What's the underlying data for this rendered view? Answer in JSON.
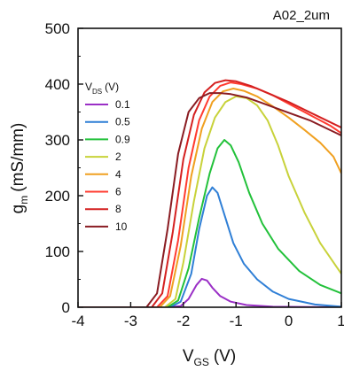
{
  "chart_data": {
    "type": "line",
    "tag": "A02_2um",
    "xlabel": {
      "main": "V",
      "sub": "GS",
      "unit": "(V)"
    },
    "ylabel": {
      "main": "g",
      "sub": "m",
      "unit": "(mS/mm)"
    },
    "xlim": [
      -4,
      1
    ],
    "ylim": [
      0,
      500
    ],
    "xticks": [
      -4,
      -3,
      -2,
      -1,
      0,
      1
    ],
    "yticks": [
      0,
      100,
      200,
      300,
      400,
      500
    ],
    "legend": {
      "title": "V",
      "title_sub": "DS",
      "title_unit": "(V)",
      "placement": "left-inside"
    },
    "grid": false,
    "series": [
      {
        "name": "0.1",
        "color": "#9a2fc6",
        "points": [
          [
            -4,
            0
          ],
          [
            -2.3,
            0
          ],
          [
            -2.05,
            2
          ],
          [
            -1.9,
            15
          ],
          [
            -1.75,
            40
          ],
          [
            -1.65,
            51
          ],
          [
            -1.55,
            48
          ],
          [
            -1.45,
            35
          ],
          [
            -1.3,
            20
          ],
          [
            -1.1,
            10
          ],
          [
            -0.8,
            4
          ],
          [
            -0.3,
            1
          ],
          [
            1,
            0
          ]
        ]
      },
      {
        "name": "0.5",
        "color": "#2f7fd6",
        "points": [
          [
            -4,
            0
          ],
          [
            -2.25,
            0
          ],
          [
            -2.05,
            10
          ],
          [
            -1.85,
            60
          ],
          [
            -1.7,
            140
          ],
          [
            -1.55,
            200
          ],
          [
            -1.45,
            215
          ],
          [
            -1.35,
            205
          ],
          [
            -1.2,
            160
          ],
          [
            -1.05,
            115
          ],
          [
            -0.85,
            78
          ],
          [
            -0.6,
            50
          ],
          [
            -0.3,
            28
          ],
          [
            0,
            15
          ],
          [
            0.5,
            5
          ],
          [
            1,
            1
          ]
        ]
      },
      {
        "name": "0.9",
        "color": "#22c13a",
        "points": [
          [
            -4,
            0
          ],
          [
            -2.3,
            0
          ],
          [
            -2.1,
            12
          ],
          [
            -1.9,
            70
          ],
          [
            -1.7,
            160
          ],
          [
            -1.5,
            240
          ],
          [
            -1.35,
            285
          ],
          [
            -1.22,
            300
          ],
          [
            -1.1,
            290
          ],
          [
            -0.95,
            260
          ],
          [
            -0.75,
            205
          ],
          [
            -0.5,
            150
          ],
          [
            -0.2,
            105
          ],
          [
            0.2,
            65
          ],
          [
            0.6,
            40
          ],
          [
            1,
            25
          ]
        ]
      },
      {
        "name": "2",
        "color": "#c8d23a",
        "points": [
          [
            -4,
            0
          ],
          [
            -2.35,
            0
          ],
          [
            -2.15,
            15
          ],
          [
            -2.0,
            80
          ],
          [
            -1.8,
            190
          ],
          [
            -1.6,
            285
          ],
          [
            -1.4,
            340
          ],
          [
            -1.2,
            368
          ],
          [
            -1.0,
            378
          ],
          [
            -0.8,
            375
          ],
          [
            -0.6,
            362
          ],
          [
            -0.4,
            335
          ],
          [
            -0.2,
            290
          ],
          [
            0,
            235
          ],
          [
            0.3,
            170
          ],
          [
            0.6,
            115
          ],
          [
            1,
            60
          ]
        ]
      },
      {
        "name": "4",
        "color": "#f0a020",
        "points": [
          [
            -4,
            0
          ],
          [
            -2.45,
            0
          ],
          [
            -2.25,
            20
          ],
          [
            -2.05,
            110
          ],
          [
            -1.85,
            235
          ],
          [
            -1.65,
            320
          ],
          [
            -1.45,
            368
          ],
          [
            -1.25,
            387
          ],
          [
            -1.05,
            392
          ],
          [
            -0.85,
            388
          ],
          [
            -0.6,
            378
          ],
          [
            -0.3,
            360
          ],
          [
            0,
            340
          ],
          [
            0.3,
            318
          ],
          [
            0.6,
            295
          ],
          [
            0.85,
            270
          ],
          [
            1,
            240
          ]
        ]
      },
      {
        "name": "6",
        "color": "#ff3b30",
        "points": [
          [
            -4,
            0
          ],
          [
            -2.5,
            0
          ],
          [
            -2.3,
            20
          ],
          [
            -2.1,
            120
          ],
          [
            -1.9,
            250
          ],
          [
            -1.7,
            335
          ],
          [
            -1.5,
            378
          ],
          [
            -1.3,
            397
          ],
          [
            -1.1,
            403
          ],
          [
            -0.9,
            400
          ],
          [
            -0.6,
            392
          ],
          [
            -0.3,
            380
          ],
          [
            0,
            365
          ],
          [
            0.4,
            345
          ],
          [
            0.8,
            325
          ],
          [
            1,
            312
          ]
        ]
      },
      {
        "name": "8",
        "color": "#d42020",
        "points": [
          [
            -4,
            0
          ],
          [
            -2.6,
            0
          ],
          [
            -2.4,
            25
          ],
          [
            -2.2,
            135
          ],
          [
            -2.0,
            265
          ],
          [
            -1.8,
            345
          ],
          [
            -1.6,
            385
          ],
          [
            -1.4,
            402
          ],
          [
            -1.2,
            407
          ],
          [
            -1.0,
            405
          ],
          [
            -0.7,
            396
          ],
          [
            -0.4,
            384
          ],
          [
            0,
            368
          ],
          [
            0.5,
            345
          ],
          [
            1,
            322
          ]
        ]
      },
      {
        "name": "10",
        "color": "#8a1c22",
        "points": [
          [
            -4,
            0
          ],
          [
            -2.7,
            0
          ],
          [
            -2.5,
            25
          ],
          [
            -2.3,
            140
          ],
          [
            -2.1,
            275
          ],
          [
            -1.9,
            350
          ],
          [
            -1.7,
            375
          ],
          [
            -1.5,
            384
          ],
          [
            -1.3,
            384
          ],
          [
            -1.1,
            382
          ],
          [
            -0.8,
            376
          ],
          [
            -0.5,
            366
          ],
          [
            -0.1,
            352
          ],
          [
            0.4,
            335
          ],
          [
            1,
            308
          ]
        ]
      }
    ]
  }
}
